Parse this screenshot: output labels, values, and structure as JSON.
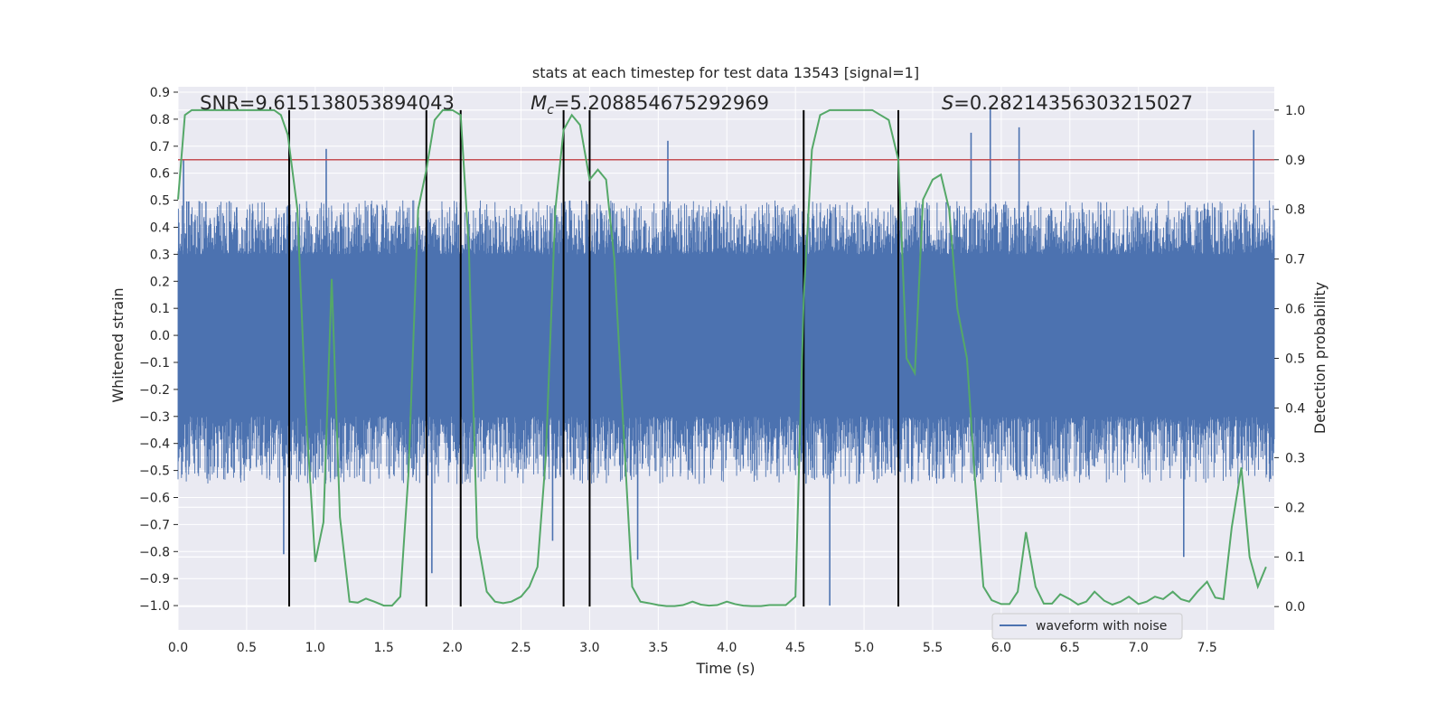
{
  "chart_data": {
    "type": "line",
    "title": "stats at each timestep for test data 13543 [signal=1]",
    "xlabel": "Time (s)",
    "ylabel": "Whitened strain",
    "y2label": "Detection probability",
    "xlim": [
      0.0,
      7.99
    ],
    "ylim": [
      -1.09,
      0.92
    ],
    "y2lim": [
      -0.047,
      1.047
    ],
    "x_ticks": [
      0.0,
      0.5,
      1.0,
      1.5,
      2.0,
      2.5,
      3.0,
      3.5,
      4.0,
      4.5,
      5.0,
      5.5,
      6.0,
      6.5,
      7.0,
      7.5
    ],
    "x_tick_labels": [
      "0.0",
      "0.5",
      "1.0",
      "1.5",
      "2.0",
      "2.5",
      "3.0",
      "3.5",
      "4.0",
      "4.5",
      "5.0",
      "5.5",
      "6.0",
      "6.5",
      "7.0",
      "7.5"
    ],
    "y_ticks": [
      0.9,
      0.8,
      0.7,
      0.6,
      0.5,
      0.4,
      0.3,
      0.2,
      0.1,
      0.0,
      -0.1,
      -0.2,
      -0.3,
      -0.4,
      -0.5,
      -0.6,
      -0.7,
      -0.8,
      -0.9,
      -1.0
    ],
    "y_tick_labels": [
      "0.9",
      "0.8",
      "0.7",
      "0.6",
      "0.5",
      "0.4",
      "0.3",
      "0.2",
      "0.1",
      "0.0",
      "−0.1",
      "−0.2",
      "−0.3",
      "−0.4",
      "−0.5",
      "−0.6",
      "−0.7",
      "−0.8",
      "−0.9",
      "−1.0"
    ],
    "y2_ticks": [
      1.0,
      0.9,
      0.8,
      0.7,
      0.6,
      0.5,
      0.4,
      0.3,
      0.2,
      0.1,
      0.0
    ],
    "y2_tick_labels": [
      "1.0",
      "0.9",
      "0.8",
      "0.7",
      "0.6",
      "0.5",
      "0.4",
      "0.3",
      "0.2",
      "0.1",
      "0.0"
    ],
    "grid": true,
    "legend": {
      "placement": "bottom-right",
      "entries": [
        {
          "label": "waveform with noise",
          "color": "#4c72b0"
        }
      ]
    },
    "annotations": {
      "snr": "SNR=9.615138053894043",
      "mc_symbol": "M",
      "mc_sub": "c",
      "mc_value": "=5.208854675292969",
      "s_symbol": "S",
      "s_value": "=0.28214356303215027"
    },
    "threshold": {
      "value": 0.9,
      "color": "#c44e52"
    },
    "vertical_markers": [
      0.81,
      1.81,
      2.06,
      2.81,
      3.0,
      4.56,
      5.25
    ],
    "waveform": {
      "name": "waveform with noise",
      "color": "#4c72b0",
      "duration": 7.99,
      "core_band": [
        -0.3,
        0.3
      ],
      "typical_peak": [
        -0.55,
        0.5
      ],
      "max_spikes": [
        {
          "x": 0.04,
          "y": 0.65
        },
        {
          "x": 0.77,
          "y": -0.81
        },
        {
          "x": 1.08,
          "y": 0.69
        },
        {
          "x": 1.85,
          "y": -0.88
        },
        {
          "x": 2.73,
          "y": -0.76
        },
        {
          "x": 3.35,
          "y": -0.83
        },
        {
          "x": 3.57,
          "y": 0.72
        },
        {
          "x": 4.75,
          "y": -1.0
        },
        {
          "x": 5.78,
          "y": 0.75
        },
        {
          "x": 5.92,
          "y": 0.84
        },
        {
          "x": 6.13,
          "y": 0.77
        },
        {
          "x": 7.33,
          "y": -0.82
        },
        {
          "x": 7.84,
          "y": 0.76
        }
      ]
    },
    "detection_probability": {
      "color": "#55a868",
      "x": [
        0.0,
        0.05,
        0.1,
        0.2,
        0.3,
        0.4,
        0.5,
        0.6,
        0.7,
        0.75,
        0.8,
        0.87,
        0.93,
        1.0,
        1.06,
        1.12,
        1.18,
        1.25,
        1.31,
        1.37,
        1.43,
        1.5,
        1.56,
        1.62,
        1.68,
        1.75,
        1.81,
        1.87,
        1.93,
        2.0,
        2.06,
        2.12,
        2.18,
        2.25,
        2.31,
        2.37,
        2.43,
        2.5,
        2.56,
        2.62,
        2.68,
        2.75,
        2.81,
        2.87,
        2.93,
        3.0,
        3.06,
        3.12,
        3.18,
        3.25,
        3.31,
        3.37,
        3.43,
        3.5,
        3.56,
        3.62,
        3.68,
        3.75,
        3.81,
        3.87,
        3.93,
        4.0,
        4.06,
        4.12,
        4.18,
        4.25,
        4.31,
        4.37,
        4.43,
        4.5,
        4.56,
        4.62,
        4.68,
        4.75,
        4.81,
        4.87,
        4.93,
        5.0,
        5.06,
        5.12,
        5.18,
        5.25,
        5.31,
        5.37,
        5.43,
        5.5,
        5.56,
        5.62,
        5.68,
        5.75,
        5.81,
        5.87,
        5.93,
        6.0,
        6.06,
        6.12,
        6.18,
        6.25,
        6.31,
        6.37,
        6.43,
        6.5,
        6.56,
        6.62,
        6.68,
        6.75,
        6.81,
        6.87,
        6.93,
        7.0,
        7.06,
        7.12,
        7.18,
        7.25,
        7.31,
        7.37,
        7.43,
        7.5,
        7.56,
        7.62,
        7.68,
        7.75,
        7.81,
        7.87,
        7.93
      ],
      "y": [
        0.82,
        0.99,
        1.0,
        1.0,
        1.0,
        1.0,
        1.0,
        1.0,
        1.0,
        0.99,
        0.95,
        0.8,
        0.4,
        0.09,
        0.17,
        0.66,
        0.18,
        0.01,
        0.008,
        0.016,
        0.01,
        0.002,
        0.002,
        0.02,
        0.27,
        0.8,
        0.88,
        0.98,
        1.0,
        1.0,
        0.99,
        0.72,
        0.14,
        0.03,
        0.01,
        0.007,
        0.01,
        0.02,
        0.04,
        0.08,
        0.3,
        0.8,
        0.96,
        0.99,
        0.97,
        0.86,
        0.88,
        0.86,
        0.7,
        0.34,
        0.04,
        0.01,
        0.007,
        0.003,
        0.001,
        0.001,
        0.003,
        0.01,
        0.004,
        0.002,
        0.003,
        0.01,
        0.005,
        0.002,
        0.001,
        0.001,
        0.003,
        0.003,
        0.003,
        0.02,
        0.62,
        0.92,
        0.99,
        1.0,
        1.0,
        1.0,
        1.0,
        1.0,
        1.0,
        0.99,
        0.98,
        0.9,
        0.5,
        0.47,
        0.82,
        0.86,
        0.87,
        0.8,
        0.6,
        0.5,
        0.25,
        0.04,
        0.013,
        0.005,
        0.005,
        0.03,
        0.15,
        0.04,
        0.006,
        0.006,
        0.025,
        0.015,
        0.004,
        0.01,
        0.03,
        0.012,
        0.004,
        0.01,
        0.02,
        0.005,
        0.01,
        0.02,
        0.015,
        0.03,
        0.015,
        0.01,
        0.03,
        0.05,
        0.018,
        0.015,
        0.16,
        0.28,
        0.1,
        0.04,
        0.08
      ]
    }
  }
}
